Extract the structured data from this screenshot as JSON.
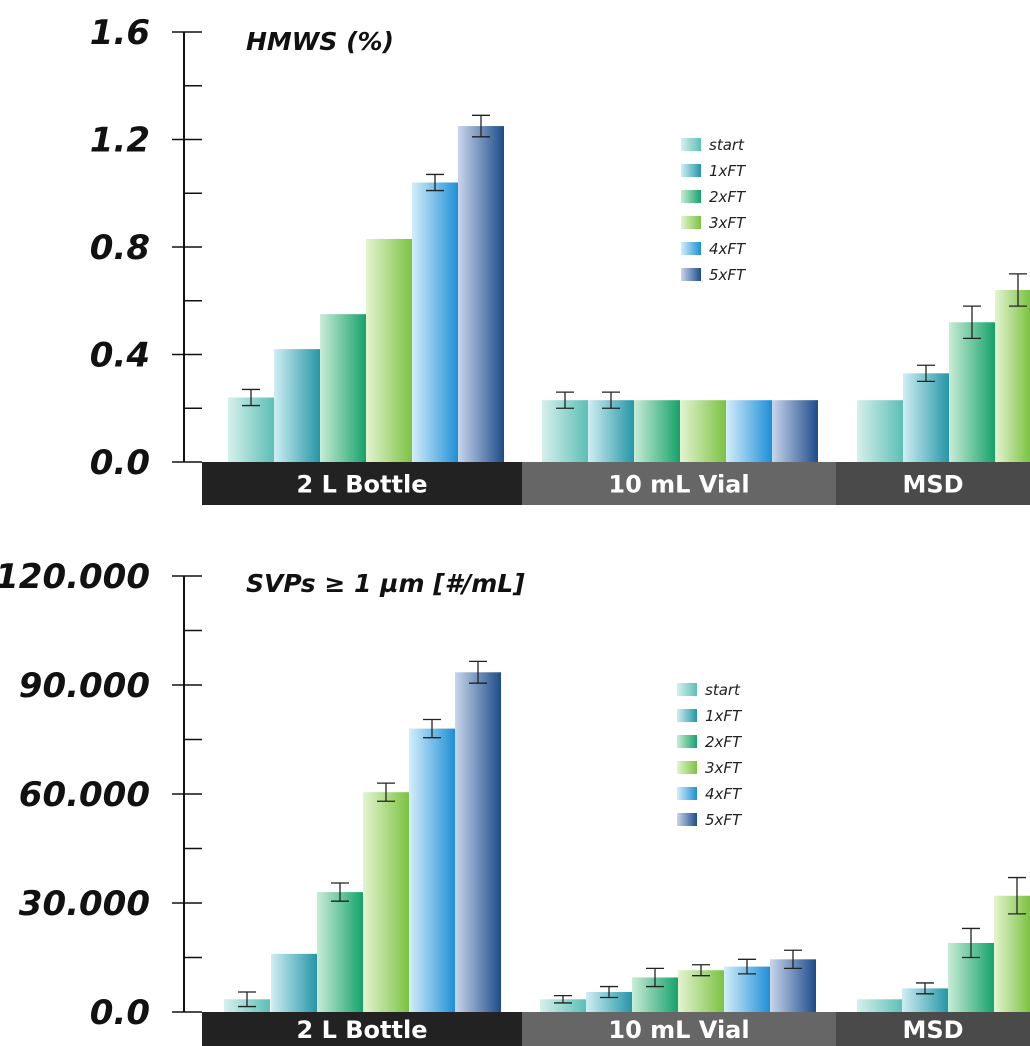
{
  "series_colors": [
    {
      "name": "start",
      "dark": "#5cbfb5",
      "light": "#d6f0ec"
    },
    {
      "name": "1xFT",
      "dark": "#2596a6",
      "light": "#cfeef3"
    },
    {
      "name": "2xFT",
      "dark": "#15a26a",
      "light": "#c9ecd6"
    },
    {
      "name": "3xFT",
      "dark": "#7cc242",
      "light": "#e4f4d1"
    },
    {
      "name": "4xFT",
      "dark": "#1e8fd6",
      "light": "#d4eefa"
    },
    {
      "name": "5xFT",
      "dark": "#1e4c8a",
      "light": "#c9d6ec"
    }
  ],
  "category_bg": [
    "#222222",
    "#666666",
    "#4a4a4a"
  ],
  "chart_data": [
    {
      "type": "bar",
      "title": "HMWS (%)",
      "categories": [
        "2 L Bottle",
        "10 mL Vial",
        "MSD"
      ],
      "yticks": [
        "0.0",
        "0.4",
        "0.8",
        "1.2",
        "1.6"
      ],
      "ylim": [
        0,
        1.6
      ],
      "legend_position": "center-right",
      "series": [
        {
          "name": "start",
          "values": [
            0.24,
            0.23,
            0.23
          ],
          "errors": [
            0.03,
            0.03,
            0
          ]
        },
        {
          "name": "1xFT",
          "values": [
            0.42,
            0.23,
            0.33
          ],
          "errors": [
            0,
            0.03,
            0.03
          ]
        },
        {
          "name": "2xFT",
          "values": [
            0.55,
            0.23,
            0.52
          ],
          "errors": [
            0,
            0,
            0.06
          ]
        },
        {
          "name": "3xFT",
          "values": [
            0.83,
            0.23,
            0.64
          ],
          "errors": [
            0,
            0,
            0.06
          ]
        },
        {
          "name": "4xFT",
          "values": [
            1.04,
            0.23,
            null
          ],
          "errors": [
            0.03,
            0,
            null
          ]
        },
        {
          "name": "5xFT",
          "values": [
            1.25,
            0.23,
            null
          ],
          "errors": [
            0.04,
            0,
            null
          ]
        }
      ]
    },
    {
      "type": "bar",
      "title": "SVPs  ≥ 1 µm [#/mL]",
      "categories": [
        "2 L Bottle",
        "10 mL Vial",
        "MSD"
      ],
      "yticks": [
        "0.0",
        "30.000",
        "60.000",
        "90.000",
        "120.000"
      ],
      "ylim": [
        0,
        120000
      ],
      "legend_position": "center-right",
      "series": [
        {
          "name": "start",
          "values": [
            3500,
            3500,
            3500
          ],
          "errors": [
            2000,
            1000,
            0
          ]
        },
        {
          "name": "1xFT",
          "values": [
            16000,
            5500,
            6500
          ],
          "errors": [
            0,
            1500,
            1500
          ]
        },
        {
          "name": "2xFT",
          "values": [
            33000,
            9500,
            19000
          ],
          "errors": [
            2500,
            2500,
            4000
          ]
        },
        {
          "name": "3xFT",
          "values": [
            60500,
            11500,
            32000
          ],
          "errors": [
            2500,
            1500,
            5000
          ]
        },
        {
          "name": "4xFT",
          "values": [
            78000,
            12500,
            null
          ],
          "errors": [
            2500,
            2000,
            null
          ]
        },
        {
          "name": "5xFT",
          "values": [
            93500,
            14500,
            null
          ],
          "errors": [
            3000,
            2500,
            null
          ]
        }
      ]
    }
  ]
}
